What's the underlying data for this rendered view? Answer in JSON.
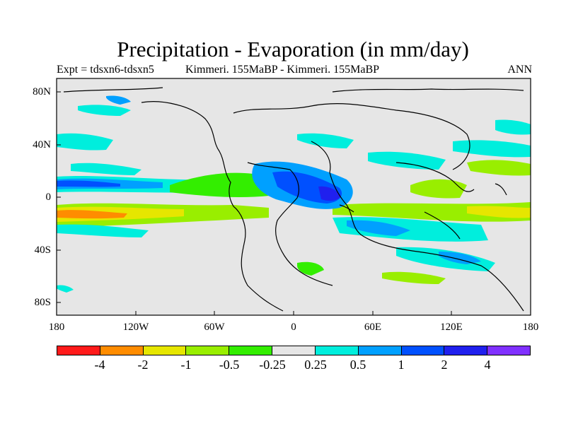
{
  "title": "Precipitation - Evaporation (in mm/day)",
  "subtitle_left": "Expt = tdsxn6-tdsxn5",
  "subtitle_center": "Kimmeri. 155MaBP - Kimmeri. 155MaBP",
  "subtitle_right": "ANN",
  "lat_labels": [
    "80N",
    "40N",
    "0",
    "40S",
    "80S"
  ],
  "lon_labels": [
    "180",
    "120W",
    "60W",
    "0",
    "60E",
    "120E",
    "180"
  ],
  "colorbar": {
    "colors": [
      "#ff1a1a",
      "#ff8c00",
      "#e6e600",
      "#99ee00",
      "#33ee00",
      "#e6e6e6",
      "#00eedd",
      "#00a0ff",
      "#0050ff",
      "#2020ee",
      "#8030ff"
    ],
    "labels": [
      "-4",
      "-2",
      "-1",
      "-0.5",
      "-0.25",
      "0.25",
      "0.5",
      "1",
      "2",
      "4"
    ]
  },
  "background_color": "#e6e6e6",
  "coastline_color": "#000000"
}
